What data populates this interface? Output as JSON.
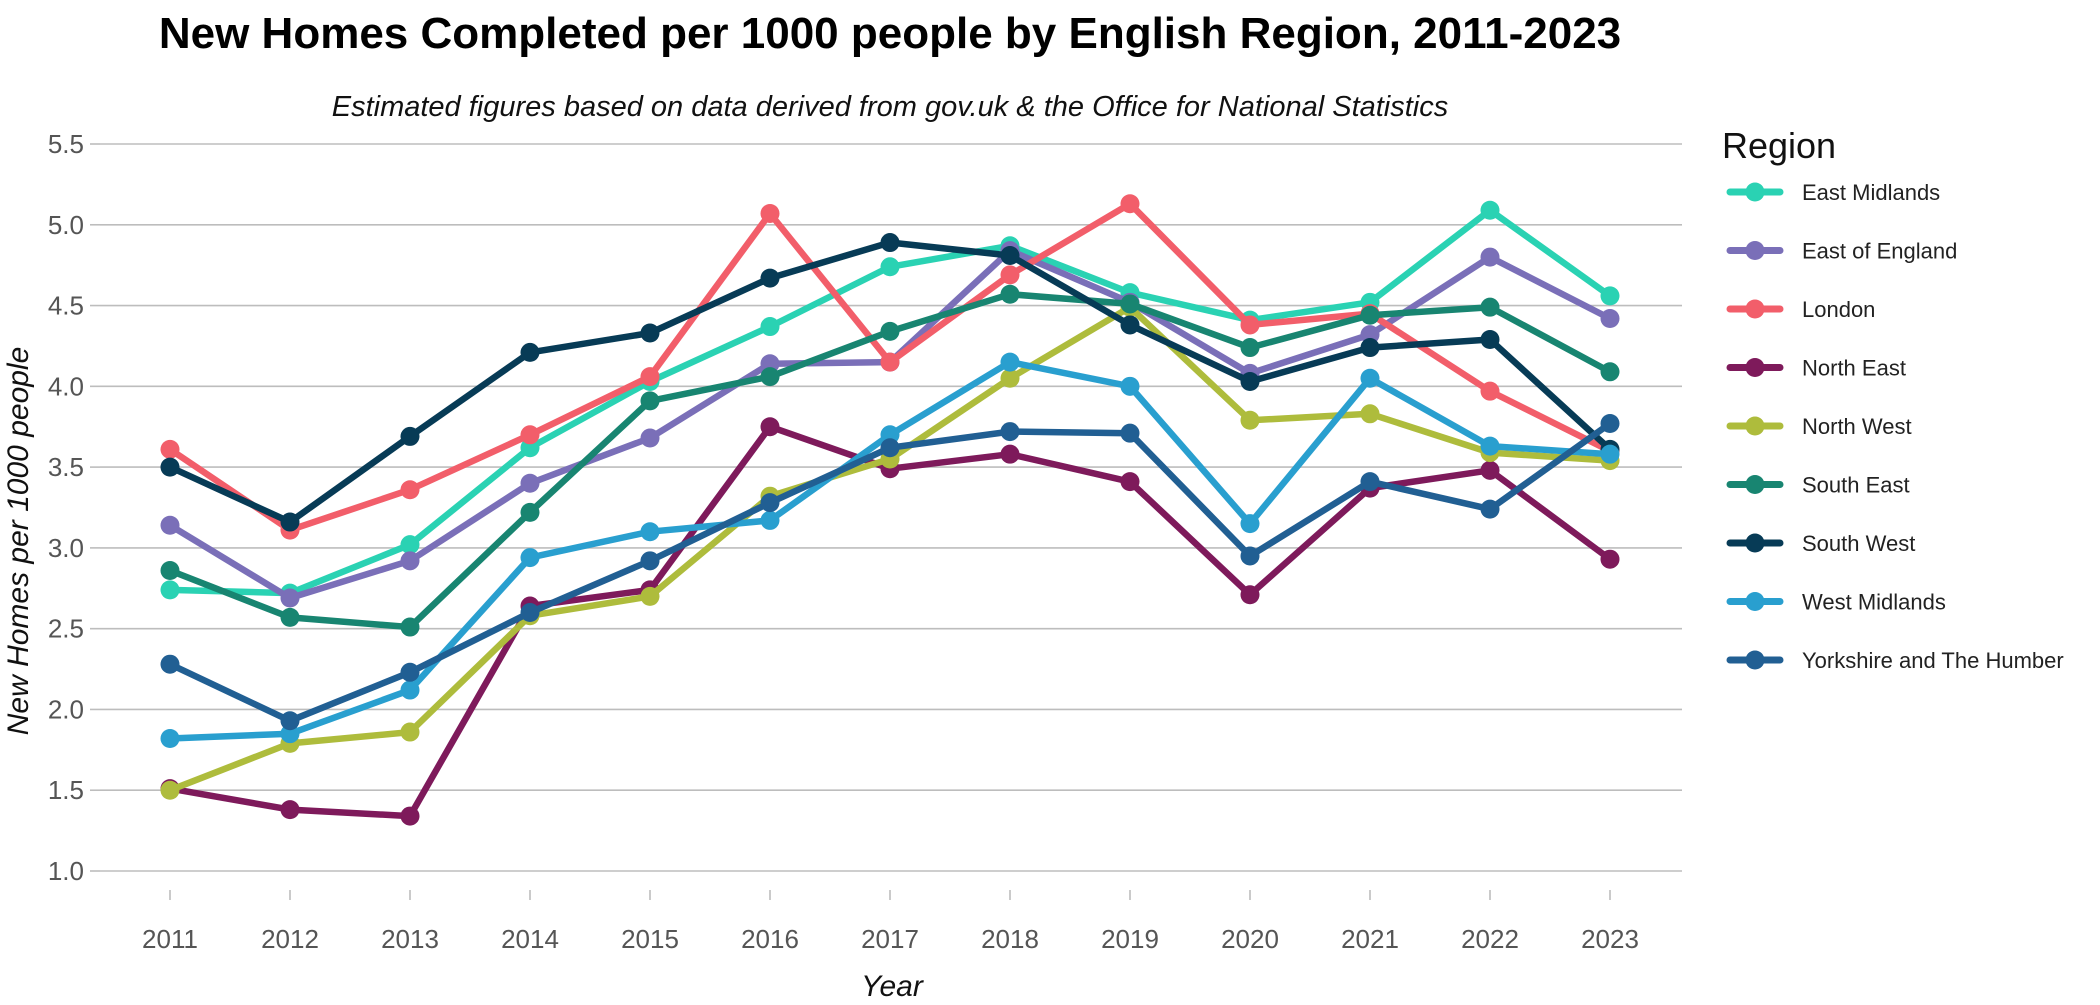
{
  "chart_data": {
    "type": "line",
    "title": "New Homes Completed per 1000 people by English Region, 2011-2023",
    "subtitle": "Estimated figures based on data derived from gov.uk & the Office for National Statistics",
    "xlabel": "Year",
    "ylabel": "New Homes per 1000 people",
    "ylim": [
      1.0,
      5.5
    ],
    "yticks": [
      "1.0",
      "1.5",
      "2.0",
      "2.5",
      "3.0",
      "3.5",
      "4.0",
      "4.5",
      "5.0",
      "5.5"
    ],
    "grid": true,
    "legend_position": "right",
    "legend_title": "Region",
    "x": [
      "2011",
      "2012",
      "2013",
      "2014",
      "2015",
      "2016",
      "2017",
      "2018",
      "2019",
      "2020",
      "2021",
      "2022",
      "2023"
    ],
    "series": [
      {
        "name": "East Midlands",
        "color": "#2ad2b3",
        "values": [
          2.74,
          2.72,
          3.02,
          3.62,
          4.03,
          4.37,
          4.74,
          4.87,
          4.58,
          4.41,
          4.52,
          5.09,
          4.56
        ]
      },
      {
        "name": "East of England",
        "color": "#7a6fb8",
        "values": [
          3.14,
          2.69,
          2.92,
          3.4,
          3.68,
          4.14,
          4.15,
          4.84,
          4.52,
          4.08,
          4.32,
          4.8,
          4.42
        ]
      },
      {
        "name": "London",
        "color": "#f25e6a",
        "values": [
          3.61,
          3.11,
          3.36,
          3.7,
          4.06,
          5.07,
          4.15,
          4.69,
          5.13,
          4.38,
          4.45,
          3.97,
          3.6
        ]
      },
      {
        "name": "North East",
        "color": "#7e1a5b",
        "values": [
          1.51,
          1.38,
          1.34,
          2.64,
          2.74,
          3.75,
          3.49,
          3.58,
          3.41,
          2.71,
          3.37,
          3.48,
          2.93
        ]
      },
      {
        "name": "North West",
        "color": "#aebc3c",
        "values": [
          1.5,
          1.79,
          1.86,
          2.58,
          2.7,
          3.32,
          3.55,
          4.05,
          4.49,
          3.79,
          3.83,
          3.59,
          3.54
        ]
      },
      {
        "name": "South East",
        "color": "#188571",
        "values": [
          2.86,
          2.57,
          2.51,
          3.22,
          3.91,
          4.06,
          4.34,
          4.57,
          4.51,
          4.24,
          4.44,
          4.49,
          4.09
        ]
      },
      {
        "name": "South West",
        "color": "#073b56",
        "values": [
          3.5,
          3.16,
          3.69,
          4.21,
          4.33,
          4.67,
          4.89,
          4.81,
          4.38,
          4.03,
          4.24,
          4.29,
          3.61
        ]
      },
      {
        "name": "West Midlands",
        "color": "#299fcf",
        "values": [
          1.82,
          1.85,
          2.12,
          2.94,
          3.1,
          3.17,
          3.7,
          4.15,
          4.0,
          3.15,
          4.05,
          3.63,
          3.58
        ]
      },
      {
        "name": "Yorkshire and The Humber",
        "color": "#215f93",
        "values": [
          2.28,
          1.93,
          2.23,
          2.6,
          2.92,
          3.28,
          3.62,
          3.72,
          3.71,
          2.95,
          3.41,
          3.24,
          3.77
        ]
      }
    ]
  }
}
